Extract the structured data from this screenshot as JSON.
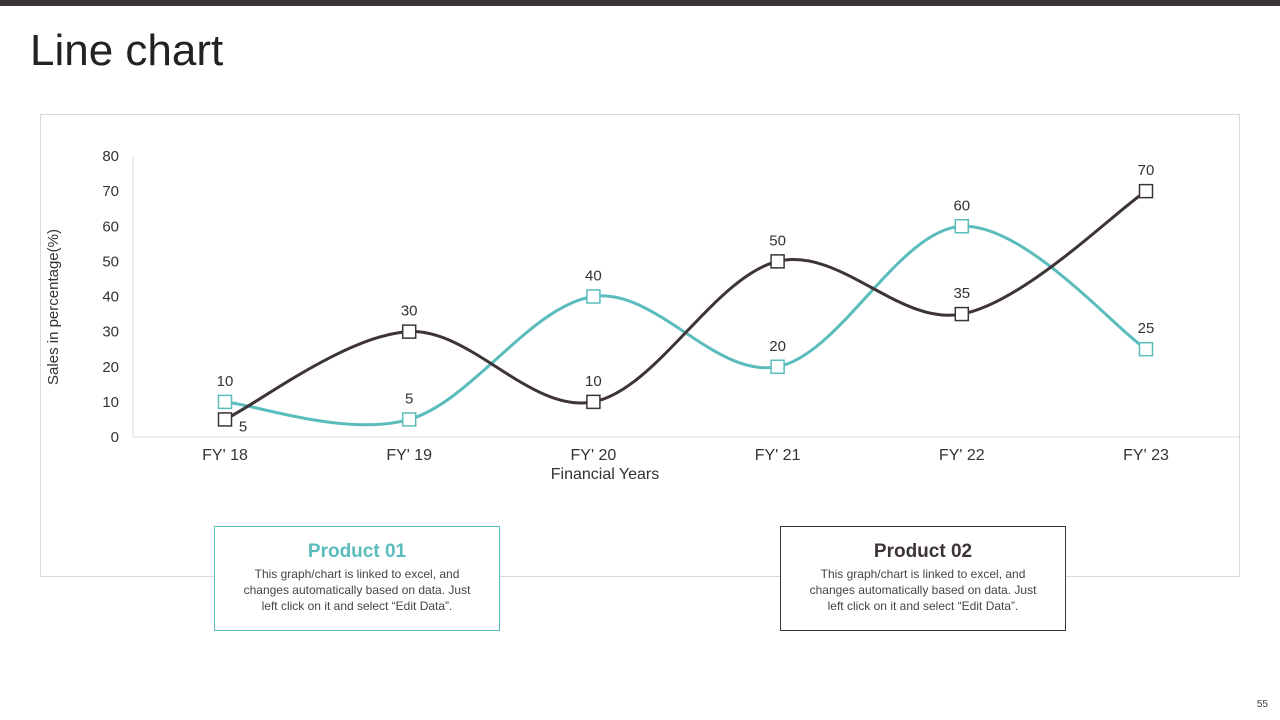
{
  "slide": {
    "title": "Line chart",
    "page_number": "55"
  },
  "colors": {
    "series1": "#5bbcbc",
    "series2": "#3d3438",
    "accent_bar": "#3d3438"
  },
  "legend": [
    {
      "title": "Product 01",
      "description": "This graph/chart is linked to excel, and changes automatically based on data. Just left click on it and select “Edit Data”."
    },
    {
      "title": "Product 02",
      "description": "This graph/chart is linked to excel, and changes automatically based on data. Just left click on it and select “Edit Data”."
    }
  ],
  "chart_data": {
    "type": "line",
    "title": "",
    "xlabel": "Financial Years",
    "ylabel": "Sales in percentage(%)",
    "categories": [
      "FY' 18",
      "FY' 19",
      "FY' 20",
      "FY' 21",
      "FY' 22",
      "FY' 23"
    ],
    "ylim": [
      0,
      80
    ],
    "yticks": [
      0,
      10,
      20,
      30,
      40,
      50,
      60,
      70,
      80
    ],
    "smooth": true,
    "marker": "square",
    "series": [
      {
        "name": "Product 01",
        "color": "#5bbcbc",
        "values": [
          10,
          5,
          40,
          20,
          60,
          25
        ]
      },
      {
        "name": "Product 02",
        "color": "#3d3438",
        "values": [
          5,
          30,
          10,
          50,
          35,
          70
        ]
      }
    ]
  }
}
